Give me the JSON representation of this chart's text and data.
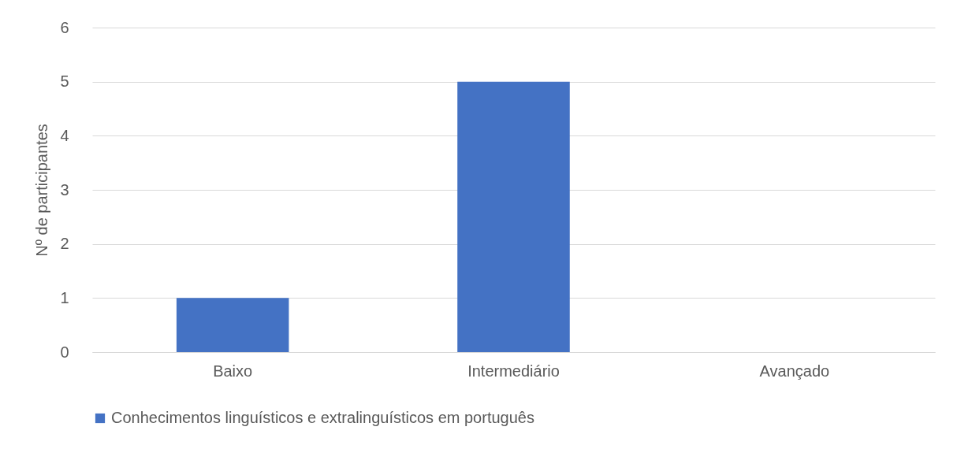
{
  "chart_data": {
    "type": "bar",
    "ylabel": "Nº de participantes",
    "categories": [
      "Baixo",
      "Intermediário",
      "Avançado"
    ],
    "series": [
      {
        "name": "Conhecimentos linguísticos e extralinguísticos em português",
        "color": "#4472c4",
        "values": [
          1,
          5,
          0
        ]
      }
    ],
    "ylim": [
      0,
      6
    ],
    "yticks": [
      0,
      1,
      2,
      3,
      4,
      5,
      6
    ],
    "grid": "y",
    "legend": "bottom"
  }
}
